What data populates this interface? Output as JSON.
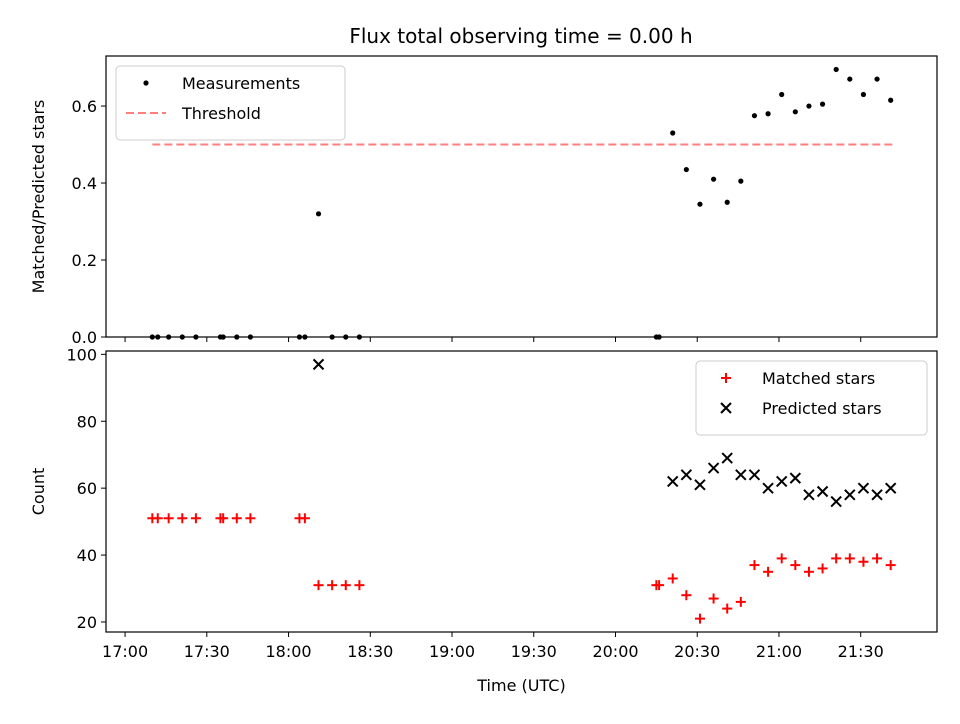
{
  "title": "Flux total observing time = 0.00 h",
  "colors": {
    "measurement": "#000000",
    "threshold": "#ff7f7f",
    "matched": "#ff0000",
    "predicted": "#000000"
  },
  "chart_data": [
    {
      "type": "scatter",
      "panel": "top",
      "ylabel": "Matched/Predicted stars",
      "ylim": [
        0,
        0.73
      ],
      "yticks": [
        0.0,
        0.2,
        0.4,
        0.6
      ],
      "ytick_labels": [
        "0.0",
        "0.2",
        "0.4",
        "0.6"
      ],
      "xlim": [
        "16:53",
        "21:58"
      ],
      "xticks": [
        "17:00",
        "17:30",
        "18:00",
        "18:30",
        "19:00",
        "19:30",
        "20:00",
        "20:30",
        "21:00",
        "21:30"
      ],
      "legend": {
        "placement": "upper left",
        "entries": [
          "Measurements",
          "Threshold"
        ]
      },
      "threshold": {
        "name": "Threshold",
        "value": 0.5,
        "x_start": "17:10",
        "x_end": "21:42",
        "style": "dashed"
      },
      "series": [
        {
          "name": "Measurements",
          "marker": "dot",
          "points": [
            [
              "17:10",
              0.0
            ],
            [
              "17:12",
              0.0
            ],
            [
              "17:16",
              0.0
            ],
            [
              "17:21",
              0.0
            ],
            [
              "17:26",
              0.0
            ],
            [
              "17:35",
              0.0
            ],
            [
              "17:36",
              0.0
            ],
            [
              "17:41",
              0.0
            ],
            [
              "17:46",
              0.0
            ],
            [
              "18:04",
              0.0
            ],
            [
              "18:06",
              0.0
            ],
            [
              "18:11",
              0.32
            ],
            [
              "18:16",
              0.0
            ],
            [
              "18:21",
              0.0
            ],
            [
              "18:26",
              0.0
            ],
            [
              "20:15",
              0.0
            ],
            [
              "20:16",
              0.0
            ],
            [
              "20:21",
              0.53
            ],
            [
              "20:26",
              0.435
            ],
            [
              "20:31",
              0.345
            ],
            [
              "20:36",
              0.41
            ],
            [
              "20:41",
              0.35
            ],
            [
              "20:46",
              0.405
            ],
            [
              "20:51",
              0.575
            ],
            [
              "20:56",
              0.58
            ],
            [
              "21:01",
              0.63
            ],
            [
              "21:06",
              0.585
            ],
            [
              "21:11",
              0.6
            ],
            [
              "21:16",
              0.605
            ],
            [
              "21:21",
              0.695
            ],
            [
              "21:26",
              0.67
            ],
            [
              "21:31",
              0.63
            ],
            [
              "21:36",
              0.67
            ],
            [
              "21:41",
              0.615
            ]
          ]
        }
      ]
    },
    {
      "type": "scatter",
      "panel": "bottom",
      "xlabel": "Time (UTC)",
      "ylabel": "Count",
      "ylim": [
        17,
        101
      ],
      "yticks": [
        20,
        40,
        60,
        80,
        100
      ],
      "ytick_labels": [
        "20",
        "40",
        "60",
        "80",
        "100"
      ],
      "xlim": [
        "16:53",
        "21:58"
      ],
      "xticks": [
        "17:00",
        "17:30",
        "18:00",
        "18:30",
        "19:00",
        "19:30",
        "20:00",
        "20:30",
        "21:00",
        "21:30"
      ],
      "xtick_labels": [
        "17:00",
        "17:30",
        "18:00",
        "18:30",
        "19:00",
        "19:30",
        "20:00",
        "20:30",
        "21:00",
        "21:30"
      ],
      "legend": {
        "placement": "upper right",
        "entries": [
          "Matched stars",
          "Predicted stars"
        ]
      },
      "series": [
        {
          "name": "Matched stars",
          "marker": "plus",
          "points": [
            [
              "17:10",
              51
            ],
            [
              "17:12",
              51
            ],
            [
              "17:16",
              51
            ],
            [
              "17:21",
              51
            ],
            [
              "17:26",
              51
            ],
            [
              "17:35",
              51
            ],
            [
              "17:36",
              51
            ],
            [
              "17:41",
              51
            ],
            [
              "17:46",
              51
            ],
            [
              "18:04",
              51
            ],
            [
              "18:06",
              51
            ],
            [
              "18:11",
              31
            ],
            [
              "18:16",
              31
            ],
            [
              "18:21",
              31
            ],
            [
              "18:26",
              31
            ],
            [
              "20:15",
              31
            ],
            [
              "20:16",
              31
            ],
            [
              "20:21",
              33
            ],
            [
              "20:26",
              28
            ],
            [
              "20:31",
              21
            ],
            [
              "20:36",
              27
            ],
            [
              "20:41",
              24
            ],
            [
              "20:46",
              26
            ],
            [
              "20:51",
              37
            ],
            [
              "20:56",
              35
            ],
            [
              "21:01",
              39
            ],
            [
              "21:06",
              37
            ],
            [
              "21:11",
              35
            ],
            [
              "21:16",
              36
            ],
            [
              "21:21",
              39
            ],
            [
              "21:26",
              39
            ],
            [
              "21:31",
              38
            ],
            [
              "21:36",
              39
            ],
            [
              "21:41",
              37
            ]
          ]
        },
        {
          "name": "Predicted stars",
          "marker": "x",
          "points": [
            [
              "18:11",
              97
            ],
            [
              "20:21",
              62
            ],
            [
              "20:26",
              64
            ],
            [
              "20:31",
              61
            ],
            [
              "20:36",
              66
            ],
            [
              "20:41",
              69
            ],
            [
              "20:46",
              64
            ],
            [
              "20:51",
              64
            ],
            [
              "20:56",
              60
            ],
            [
              "21:01",
              62
            ],
            [
              "21:06",
              63
            ],
            [
              "21:11",
              58
            ],
            [
              "21:16",
              59
            ],
            [
              "21:21",
              56
            ],
            [
              "21:26",
              58
            ],
            [
              "21:31",
              60
            ],
            [
              "21:36",
              58
            ],
            [
              "21:41",
              60
            ]
          ]
        }
      ]
    }
  ]
}
